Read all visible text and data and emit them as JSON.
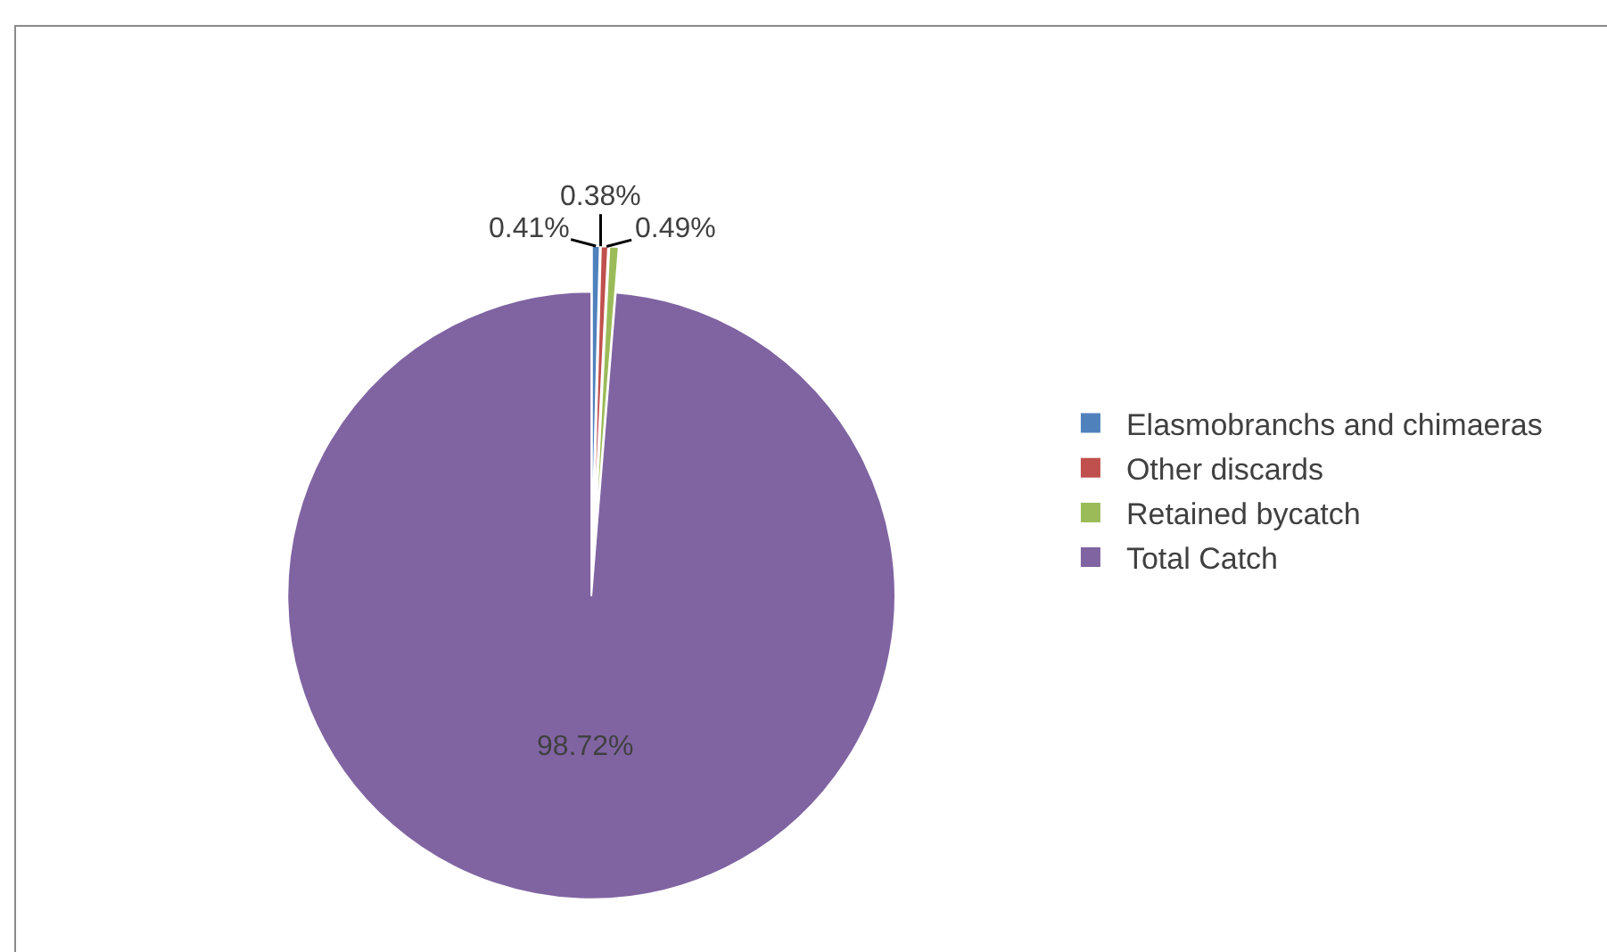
{
  "chart_data": {
    "type": "pie",
    "categories": [
      "Elasmobranchs and chimaeras",
      "Other discards",
      "Retained bycatch",
      "Total Catch"
    ],
    "values": [
      0.41,
      0.38,
      0.49,
      98.72
    ],
    "colors": [
      "#4f81bd",
      "#c0504d",
      "#9bbb59",
      "#8064a2"
    ],
    "value_labels": [
      "0.41%",
      "0.38%",
      "0.49%",
      "98.72%"
    ],
    "legend": "right"
  }
}
